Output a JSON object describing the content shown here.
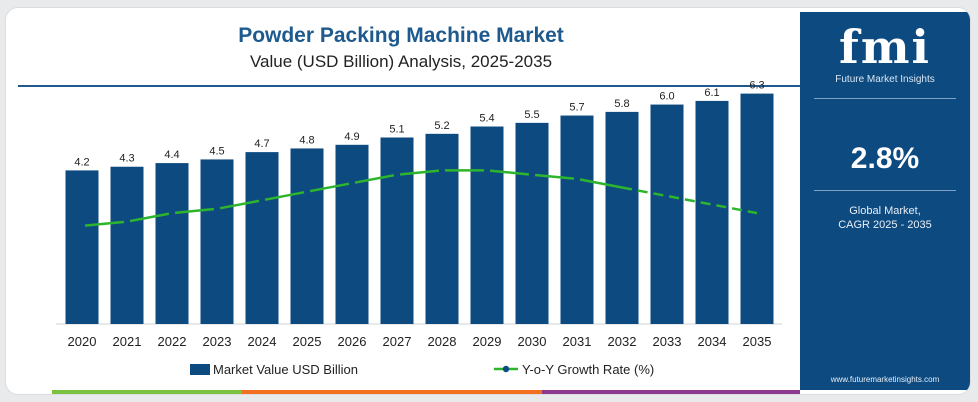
{
  "header": {
    "title": "Powder Packing Machine Market",
    "subtitle": "Value (USD Billion) Analysis, 2025-2035"
  },
  "side_panel": {
    "logo": "fmi",
    "logo_subtitle": "Future Market Insights",
    "cagr_value": "2.8%",
    "cagr_label_line1": "Global Market,",
    "cagr_label_line2": "CAGR 2025 - 2035",
    "website": "www.futuremarketinsights.com"
  },
  "colors": {
    "bar": "#0d4a80",
    "line": "#2db52d",
    "marker": "#0d4a80",
    "title": "#1e5a8e",
    "panel": "#0d4a80",
    "stripes": [
      "#7cc242",
      "#f37021",
      "#8b3a8f",
      "#0d4a80"
    ]
  },
  "chart_data": {
    "type": "bar",
    "categories": [
      "2020",
      "2021",
      "2022",
      "2023",
      "2024",
      "2025",
      "2026",
      "2027",
      "2028",
      "2029",
      "2030",
      "2031",
      "2032",
      "2033",
      "2034",
      "2035"
    ],
    "series": [
      {
        "name": "Market Value USD Billion",
        "type": "bar",
        "values": [
          4.2,
          4.3,
          4.4,
          4.5,
          4.7,
          4.8,
          4.9,
          5.1,
          5.2,
          5.4,
          5.5,
          5.7,
          5.8,
          6.0,
          6.1,
          6.3
        ],
        "labels": [
          "4.2",
          "4.3",
          "4.4",
          "4.5",
          "4.7",
          "4.8",
          "4.9",
          "5.1",
          "5.2",
          "5.4",
          "5.5",
          "5.7",
          "5.8",
          "6.0",
          "6.1",
          "6.3"
        ]
      },
      {
        "name": "Y-o-Y Growth Rate (%)",
        "type": "line",
        "values": [
          2.3,
          2.4,
          2.6,
          2.7,
          2.9,
          3.1,
          3.3,
          3.5,
          3.6,
          3.6,
          3.5,
          3.4,
          3.2,
          3.0,
          2.8,
          2.6
        ],
        "projected_from_index": 12
      }
    ],
    "ylim": [
      0,
      7
    ],
    "line_ylim": [
      0,
      6
    ],
    "legend": [
      "Market Value USD Billion",
      "Y-o-Y Growth Rate (%)"
    ],
    "legend_position": "bottom",
    "grid": false
  }
}
